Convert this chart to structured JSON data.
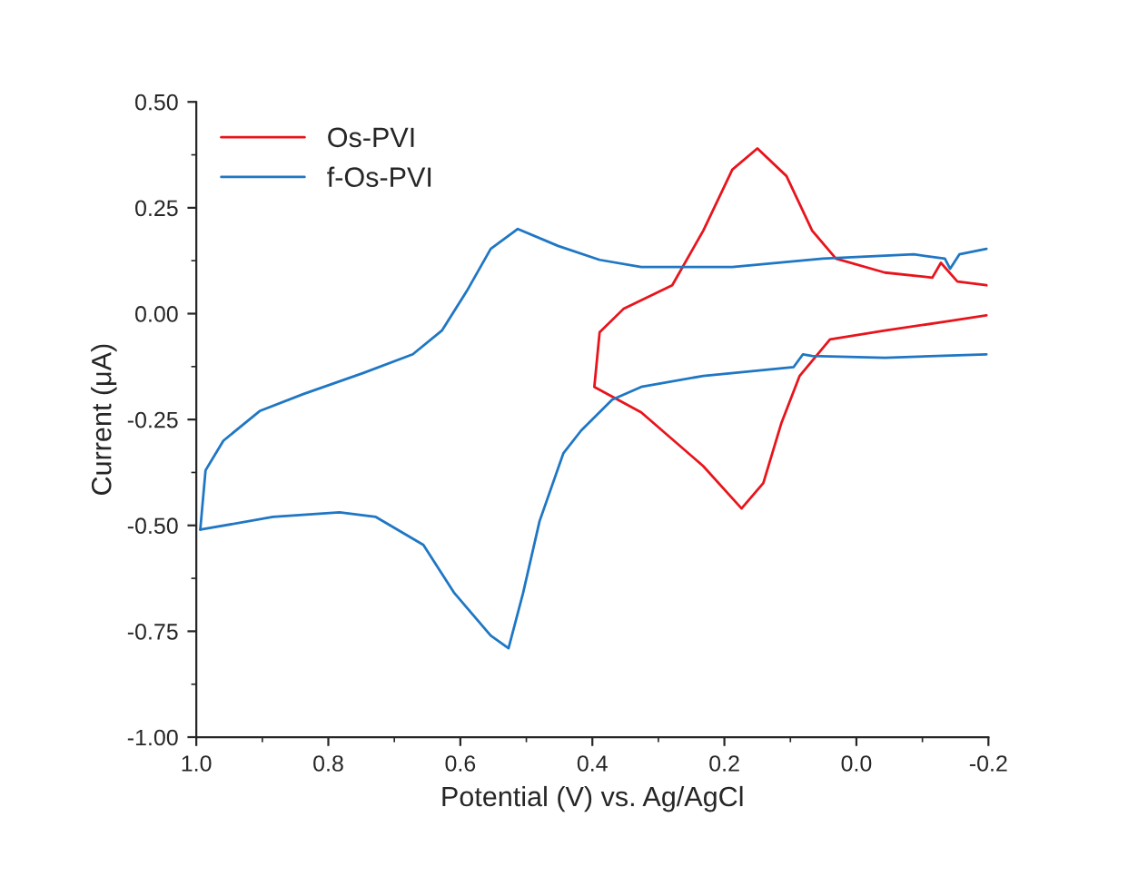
{
  "chart_data": {
    "type": "line",
    "xlabel": "Potential (V) vs. Ag/AgCl",
    "ylabel": "Current (μA)",
    "xlim": [
      1.0,
      -0.2
    ],
    "xticks": [
      {
        "value": 1.0,
        "label": "1.0"
      },
      0.8,
      0.6,
      0.4,
      0.2,
      {
        "value": 0.0,
        "label": "0.0"
      },
      -0.2
    ],
    "ylim": [
      -1.0,
      0.5
    ],
    "yticks": [
      {
        "value": 0.5,
        "label": "0.50"
      },
      {
        "value": 0.25,
        "label": "0.25"
      },
      {
        "value": 0.0,
        "label": "0.00"
      },
      {
        "value": -0.25,
        "label": "-0.25"
      },
      {
        "value": -0.5,
        "label": "-0.50"
      },
      {
        "value": -0.75,
        "label": "-0.75"
      },
      {
        "value": -1.0,
        "label": "-1.00"
      }
    ],
    "legend": "top left",
    "grid": false,
    "series": [
      {
        "name": "Os-PVI",
        "color": "#e8141c",
        "x": [
          -0.197,
          -0.153,
          -0.128,
          -0.115,
          -0.043,
          0.031,
          0.067,
          0.106,
          0.15,
          0.188,
          0.232,
          0.279,
          0.353,
          0.389,
          0.397,
          0.326,
          0.232,
          0.174,
          0.141,
          0.114,
          0.086,
          0.04,
          -0.043,
          -0.134,
          -0.197
        ],
        "values": [
          0.067,
          0.076,
          0.12,
          0.085,
          0.097,
          0.13,
          0.196,
          0.325,
          0.39,
          0.34,
          0.196,
          0.067,
          0.011,
          -0.044,
          -0.173,
          -0.233,
          -0.36,
          -0.46,
          -0.4,
          -0.26,
          -0.147,
          -0.061,
          -0.04,
          -0.019,
          -0.004
        ]
      },
      {
        "name": "f-Os-PVI",
        "color": "#1f77c4",
        "x": [
          0.994,
          0.986,
          0.959,
          0.904,
          0.838,
          0.747,
          0.672,
          0.628,
          0.59,
          0.554,
          0.513,
          0.452,
          0.389,
          0.326,
          0.188,
          0.051,
          -0.087,
          -0.134,
          -0.142,
          -0.156,
          -0.197
        ],
        "values": [
          -0.51,
          -0.37,
          -0.3,
          -0.23,
          -0.19,
          -0.14,
          -0.096,
          -0.04,
          0.054,
          0.153,
          0.2,
          0.16,
          0.127,
          0.11,
          0.11,
          0.13,
          0.14,
          0.13,
          0.106,
          0.14,
          0.153
        ]
      },
      {
        "color": "#1f77c4",
        "x": [
          -0.197,
          -0.043,
          0.067,
          0.081,
          0.095,
          0.232,
          0.326,
          0.37,
          0.417,
          0.444,
          0.48,
          0.505,
          0.527,
          0.554,
          0.609,
          0.656,
          0.728,
          0.783,
          0.884,
          0.994
        ],
        "values": [
          -0.096,
          -0.104,
          -0.1,
          -0.096,
          -0.126,
          -0.147,
          -0.173,
          -0.203,
          -0.276,
          -0.33,
          -0.49,
          -0.66,
          -0.79,
          -0.76,
          -0.66,
          -0.546,
          -0.48,
          -0.469,
          -0.48,
          -0.51
        ]
      }
    ]
  }
}
